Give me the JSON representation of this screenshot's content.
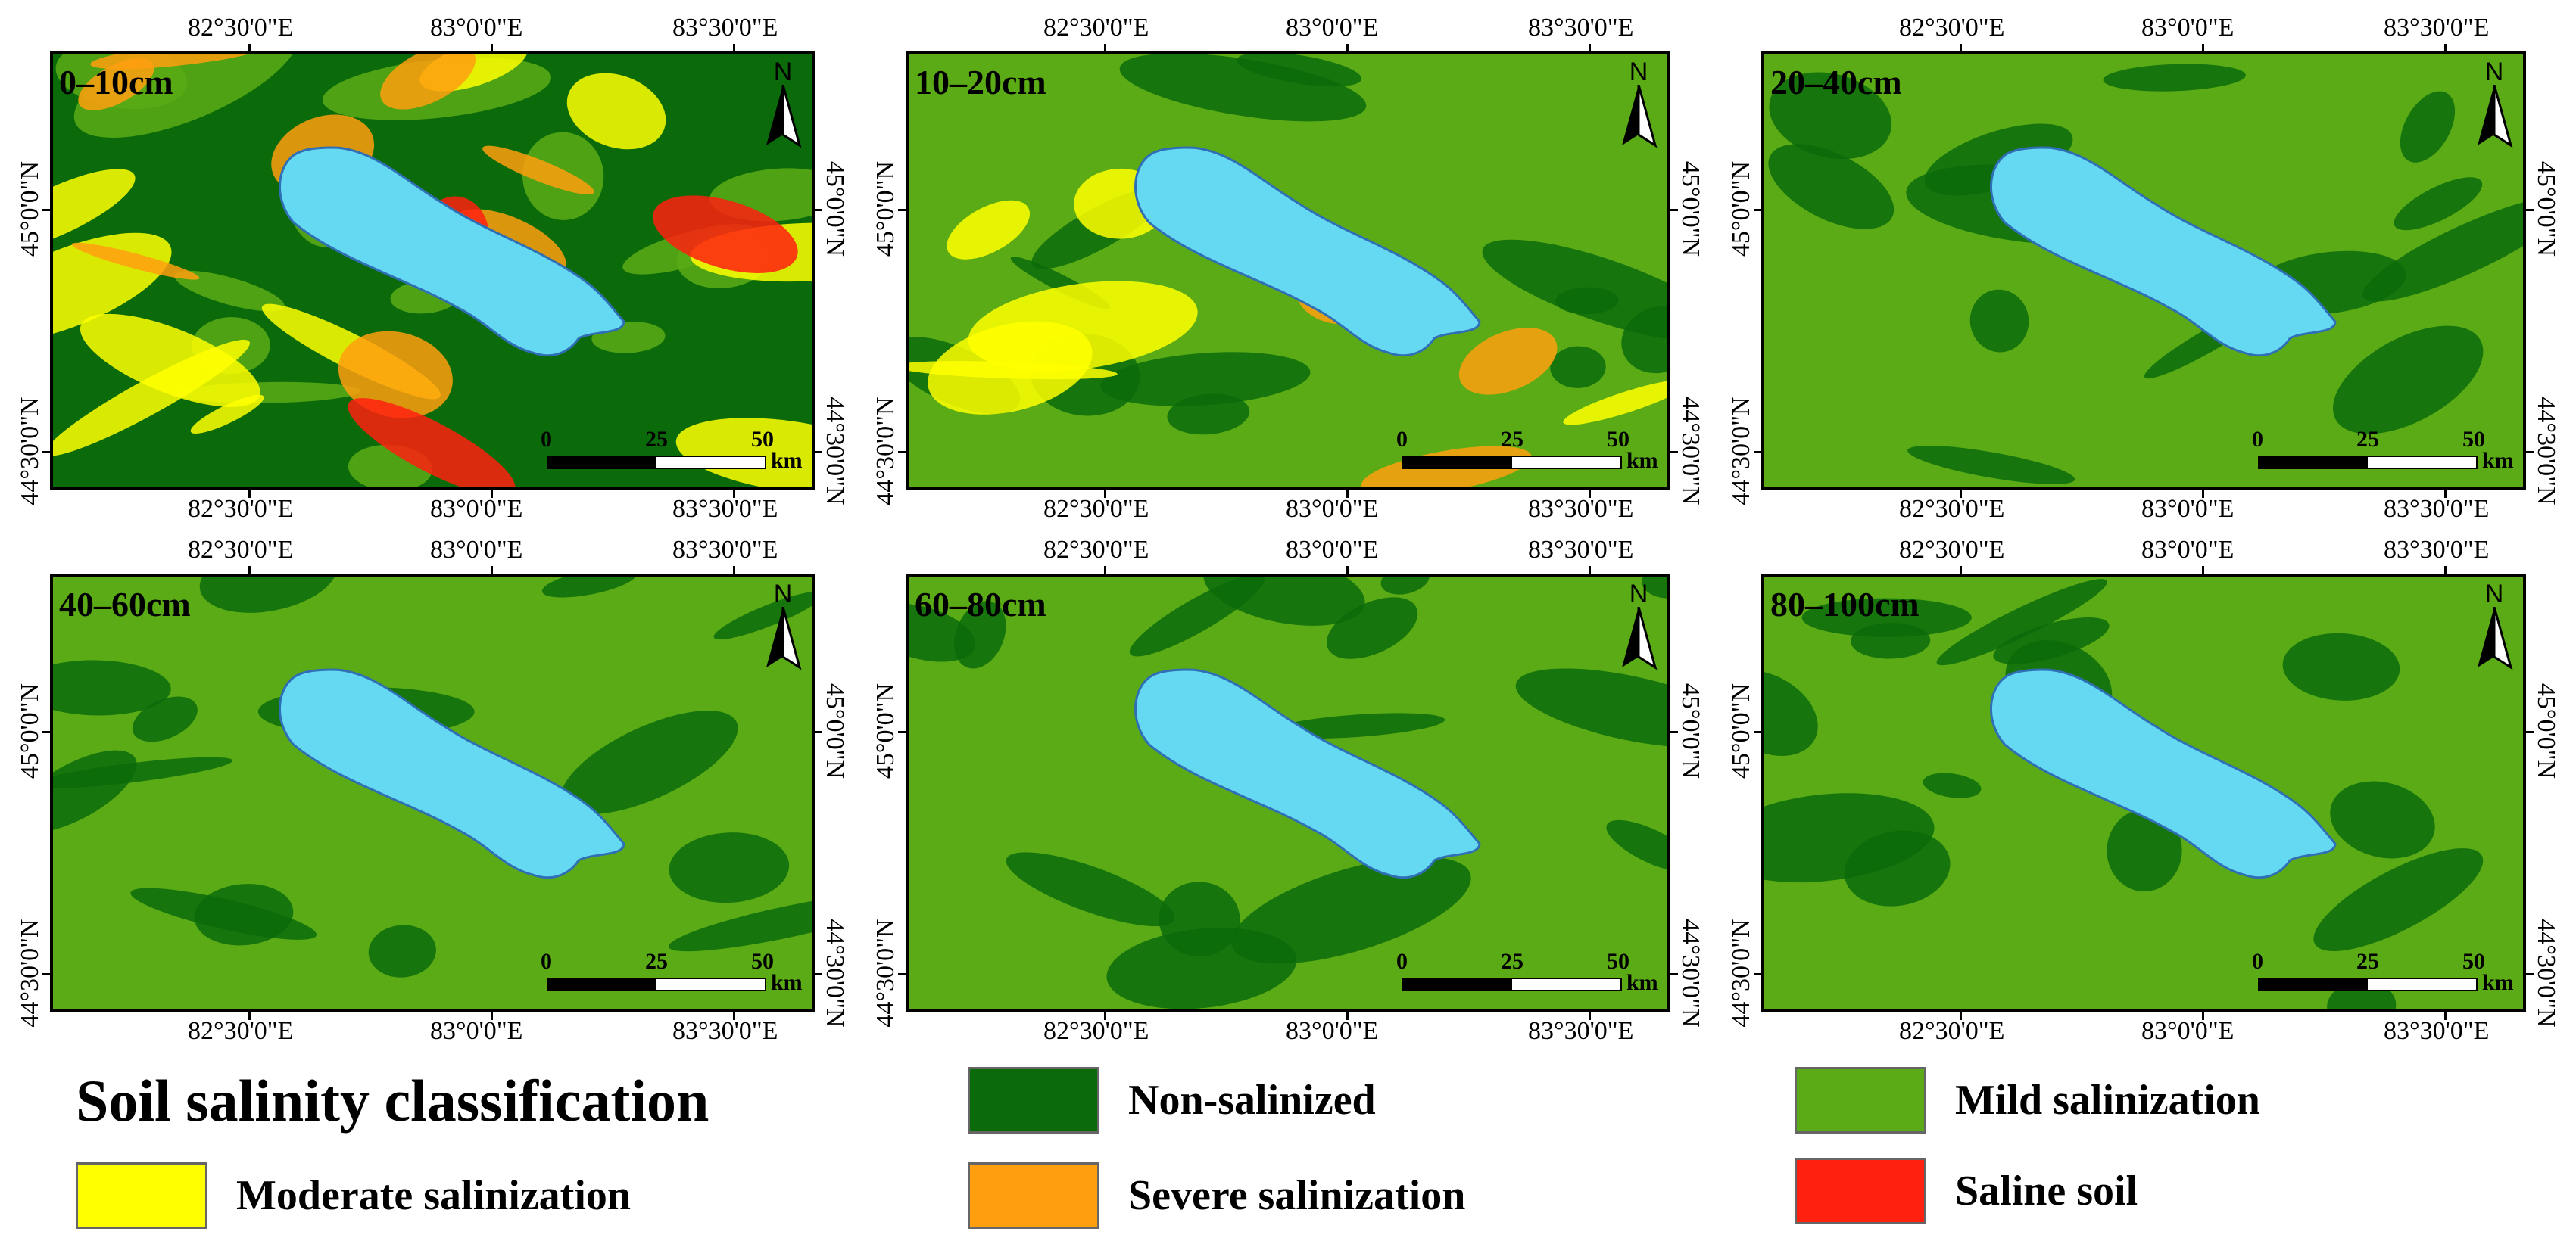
{
  "panels": [
    {
      "label": "0–10cm"
    },
    {
      "label": "10–20cm"
    },
    {
      "label": "20–40cm"
    },
    {
      "label": "40–60cm"
    },
    {
      "label": "60–80cm"
    },
    {
      "label": "80–100cm"
    }
  ],
  "axes": {
    "x_ticks": [
      "82°30'0\"E",
      "83°0'0\"E",
      "83°30'0\"E"
    ],
    "y_ticks": [
      "45°0'0\"N",
      "44°30'0\"N"
    ]
  },
  "north_arrow": {
    "label": "N",
    "icon": "north-arrow-icon"
  },
  "scale_bar": {
    "labels": [
      "0",
      "25",
      "50"
    ],
    "unit": "km"
  },
  "legend": {
    "title": "Soil salinity classification",
    "items": [
      {
        "label": "Non-salinized",
        "color": "#0b6b0b"
      },
      {
        "label": "Mild salinization",
        "color": "#5aab15"
      },
      {
        "label": "Moderate salinization",
        "color": "#ffff00"
      },
      {
        "label": "Severe salinization",
        "color": "#ff9f0f"
      },
      {
        "label": "Saline soil",
        "color": "#ff2010"
      }
    ]
  },
  "colors": {
    "lake": "#66d9f2",
    "lake_outline": "#2f6fb5"
  }
}
